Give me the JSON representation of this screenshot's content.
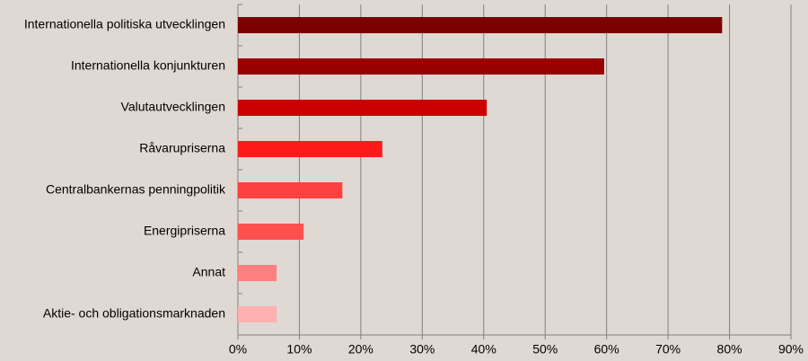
{
  "chart_data": {
    "type": "bar",
    "orientation": "horizontal",
    "categories": [
      "Internationella politiska utvecklingen",
      "Internationella konjunkturen",
      "Valutautvecklingen",
      "Råvarupriserna",
      "Centralbankernas penningpolitik",
      "Energipriserna",
      "Annat",
      "Aktie- och obligationsmarknaden"
    ],
    "values": [
      78.8,
      59.6,
      40.5,
      23.5,
      17.0,
      10.7,
      6.3,
      6.3
    ],
    "colors": [
      "#7a0000",
      "#990000",
      "#cc0000",
      "#ff1a1a",
      "#ff4040",
      "#ff5050",
      "#ff8080",
      "#ffb0b0"
    ],
    "xlim": [
      0,
      90
    ],
    "xticks": [
      {
        "value": 0,
        "label": "0%"
      },
      {
        "value": 10,
        "label": "10%"
      },
      {
        "value": 20,
        "label": "20%"
      },
      {
        "value": 30,
        "label": "30%"
      },
      {
        "value": 40,
        "label": "40%"
      },
      {
        "value": 50,
        "label": "50%"
      },
      {
        "value": 60,
        "label": "60%"
      },
      {
        "value": 70,
        "label": "70%"
      },
      {
        "value": 80,
        "label": "80%"
      },
      {
        "value": 90,
        "label": "90%"
      }
    ],
    "grid": true
  }
}
